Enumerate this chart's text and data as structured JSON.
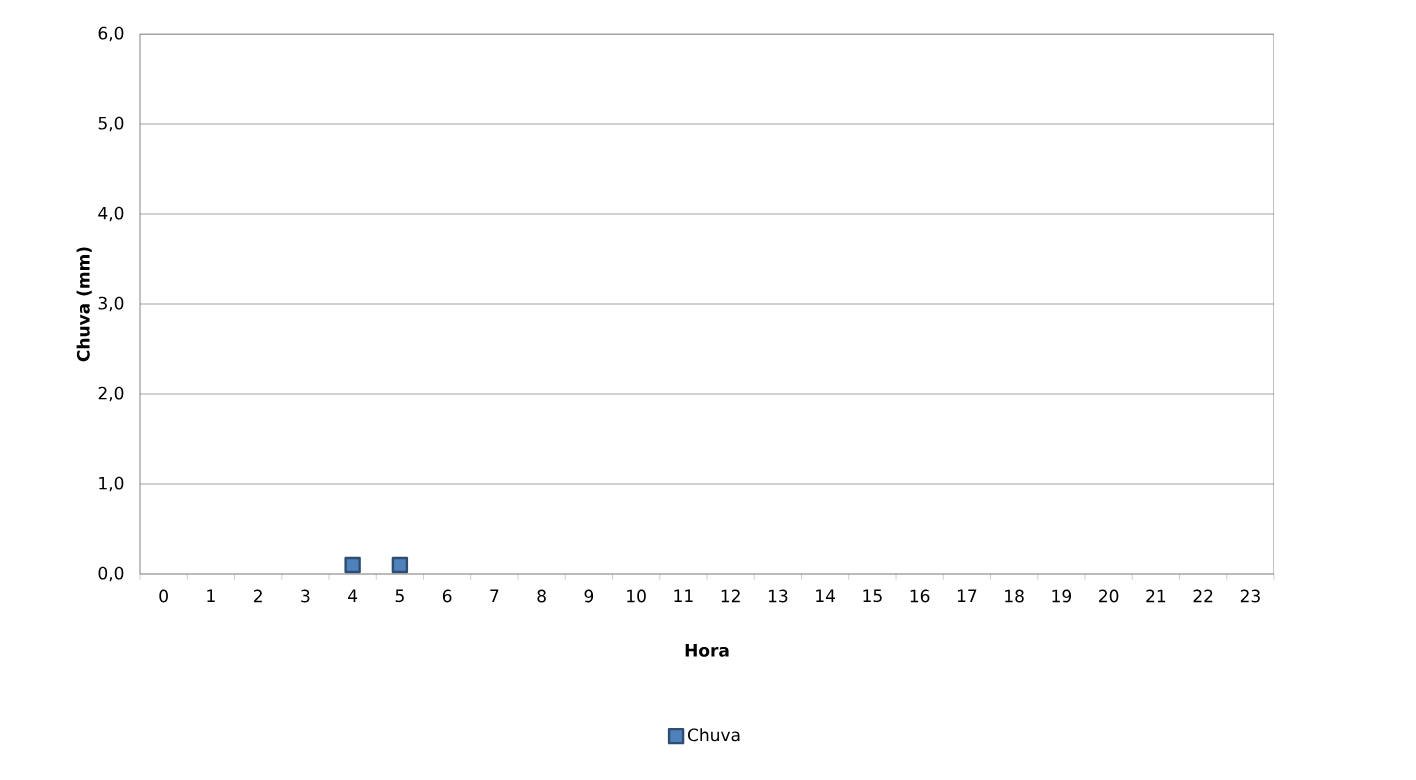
{
  "chart_data": {
    "type": "scatter",
    "xlabel": "Hora",
    "ylabel": "Chuva (mm)",
    "categories": [
      "0",
      "1",
      "2",
      "3",
      "4",
      "5",
      "6",
      "7",
      "8",
      "9",
      "10",
      "11",
      "12",
      "13",
      "14",
      "15",
      "16",
      "17",
      "18",
      "19",
      "20",
      "21",
      "22",
      "23"
    ],
    "series": [
      {
        "name": "Chuva",
        "color": "#4f81bd",
        "values": [
          null,
          null,
          null,
          null,
          0.1,
          0.1,
          null,
          null,
          null,
          null,
          null,
          null,
          null,
          null,
          null,
          null,
          null,
          null,
          null,
          null,
          null,
          null,
          null,
          null
        ]
      }
    ],
    "ylim": [
      0,
      6
    ],
    "yticks": [
      {
        "value": 0,
        "label": "0,0"
      },
      {
        "value": 1,
        "label": "1,0"
      },
      {
        "value": 2,
        "label": "2,0"
      },
      {
        "value": 3,
        "label": "3,0"
      },
      {
        "value": 4,
        "label": "4,0"
      },
      {
        "value": 5,
        "label": "5,0"
      },
      {
        "value": 6,
        "label": "6,0"
      }
    ],
    "grid": "y",
    "legend": "bottom",
    "marker": "square"
  }
}
